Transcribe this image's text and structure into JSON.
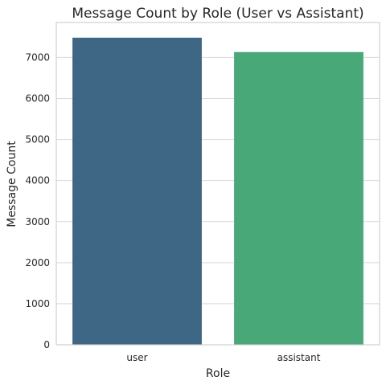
{
  "chart_data": {
    "type": "bar",
    "title": "Message Count by Role (User vs Assistant)",
    "xlabel": "Role",
    "ylabel": "Message Count",
    "categories": [
      "user",
      "assistant"
    ],
    "values": [
      7480,
      7130
    ],
    "colors": [
      "#3e6685",
      "#48a878"
    ],
    "ylim": [
      0,
      7850
    ],
    "yticks": [
      0,
      1000,
      2000,
      3000,
      4000,
      5000,
      6000,
      7000
    ],
    "grid": true,
    "legend": "none"
  }
}
